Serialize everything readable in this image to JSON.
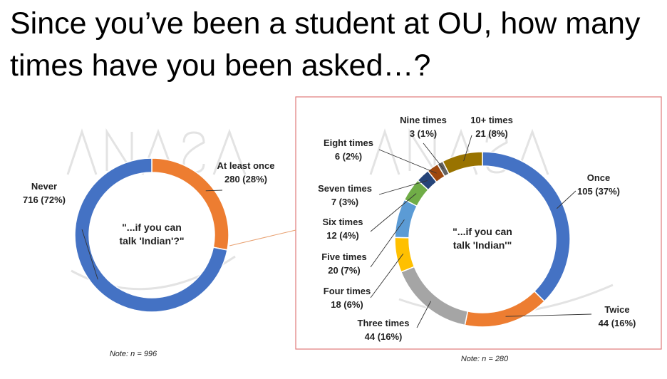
{
  "title": "Since you’ve been a student at OU, how many times have you been asked…?",
  "colors": {
    "frame": "#e07a7a",
    "connector": "#e8a070",
    "watermark": "#e6e6e6"
  },
  "chart_data": [
    {
      "type": "pie",
      "subtype": "donut",
      "center_label_lines": [
        "\"...if you can",
        "talk 'Indian'?\""
      ],
      "note": "Note: n = 996",
      "slices": [
        {
          "name": "Never",
          "value": 716,
          "percent": 72,
          "label_lines": [
            "Never",
            "716 (72%)"
          ],
          "color": "#4472c4"
        },
        {
          "name": "At least once",
          "value": 280,
          "percent": 28,
          "label_lines": [
            "At least once",
            "280 (28%)"
          ],
          "color": "#ed7d31"
        }
      ]
    },
    {
      "type": "pie",
      "subtype": "donut",
      "center_label_lines": [
        "\"...if you can",
        "talk 'Indian'\""
      ],
      "note": "Note: n = 280",
      "slices": [
        {
          "name": "Once",
          "value": 105,
          "percent": 37,
          "label_lines": [
            "Once",
            "105 (37%)"
          ],
          "color": "#4472c4"
        },
        {
          "name": "Twice",
          "value": 44,
          "percent": 16,
          "label_lines": [
            "Twice",
            "44 (16%)"
          ],
          "color": "#ed7d31"
        },
        {
          "name": "Three times",
          "value": 44,
          "percent": 16,
          "label_lines": [
            "Three times",
            "44 (16%)"
          ],
          "color": "#a5a5a5"
        },
        {
          "name": "Four times",
          "value": 18,
          "percent": 6,
          "label_lines": [
            "Four times",
            "18 (6%)"
          ],
          "color": "#ffc000"
        },
        {
          "name": "Five times",
          "value": 20,
          "percent": 7,
          "label_lines": [
            "Five times",
            "20 (7%)"
          ],
          "color": "#5b9bd5"
        },
        {
          "name": "Six times",
          "value": 12,
          "percent": 4,
          "label_lines": [
            "Six times",
            "12 (4%)"
          ],
          "color": "#70ad47"
        },
        {
          "name": "Seven times",
          "value": 7,
          "percent": 3,
          "label_lines": [
            "Seven times",
            "7 (3%)"
          ],
          "color": "#264478"
        },
        {
          "name": "Eight times",
          "value": 6,
          "percent": 2,
          "label_lines": [
            "Eight times",
            "6 (2%)"
          ],
          "color": "#9e480e"
        },
        {
          "name": "Nine times",
          "value": 3,
          "percent": 1,
          "label_lines": [
            "Nine times",
            "3 (1%)"
          ],
          "color": "#636363"
        },
        {
          "name": "10+ times",
          "value": 21,
          "percent": 8,
          "label_lines": [
            "10+ times",
            "21 (8%)"
          ],
          "color": "#997300"
        }
      ]
    }
  ]
}
